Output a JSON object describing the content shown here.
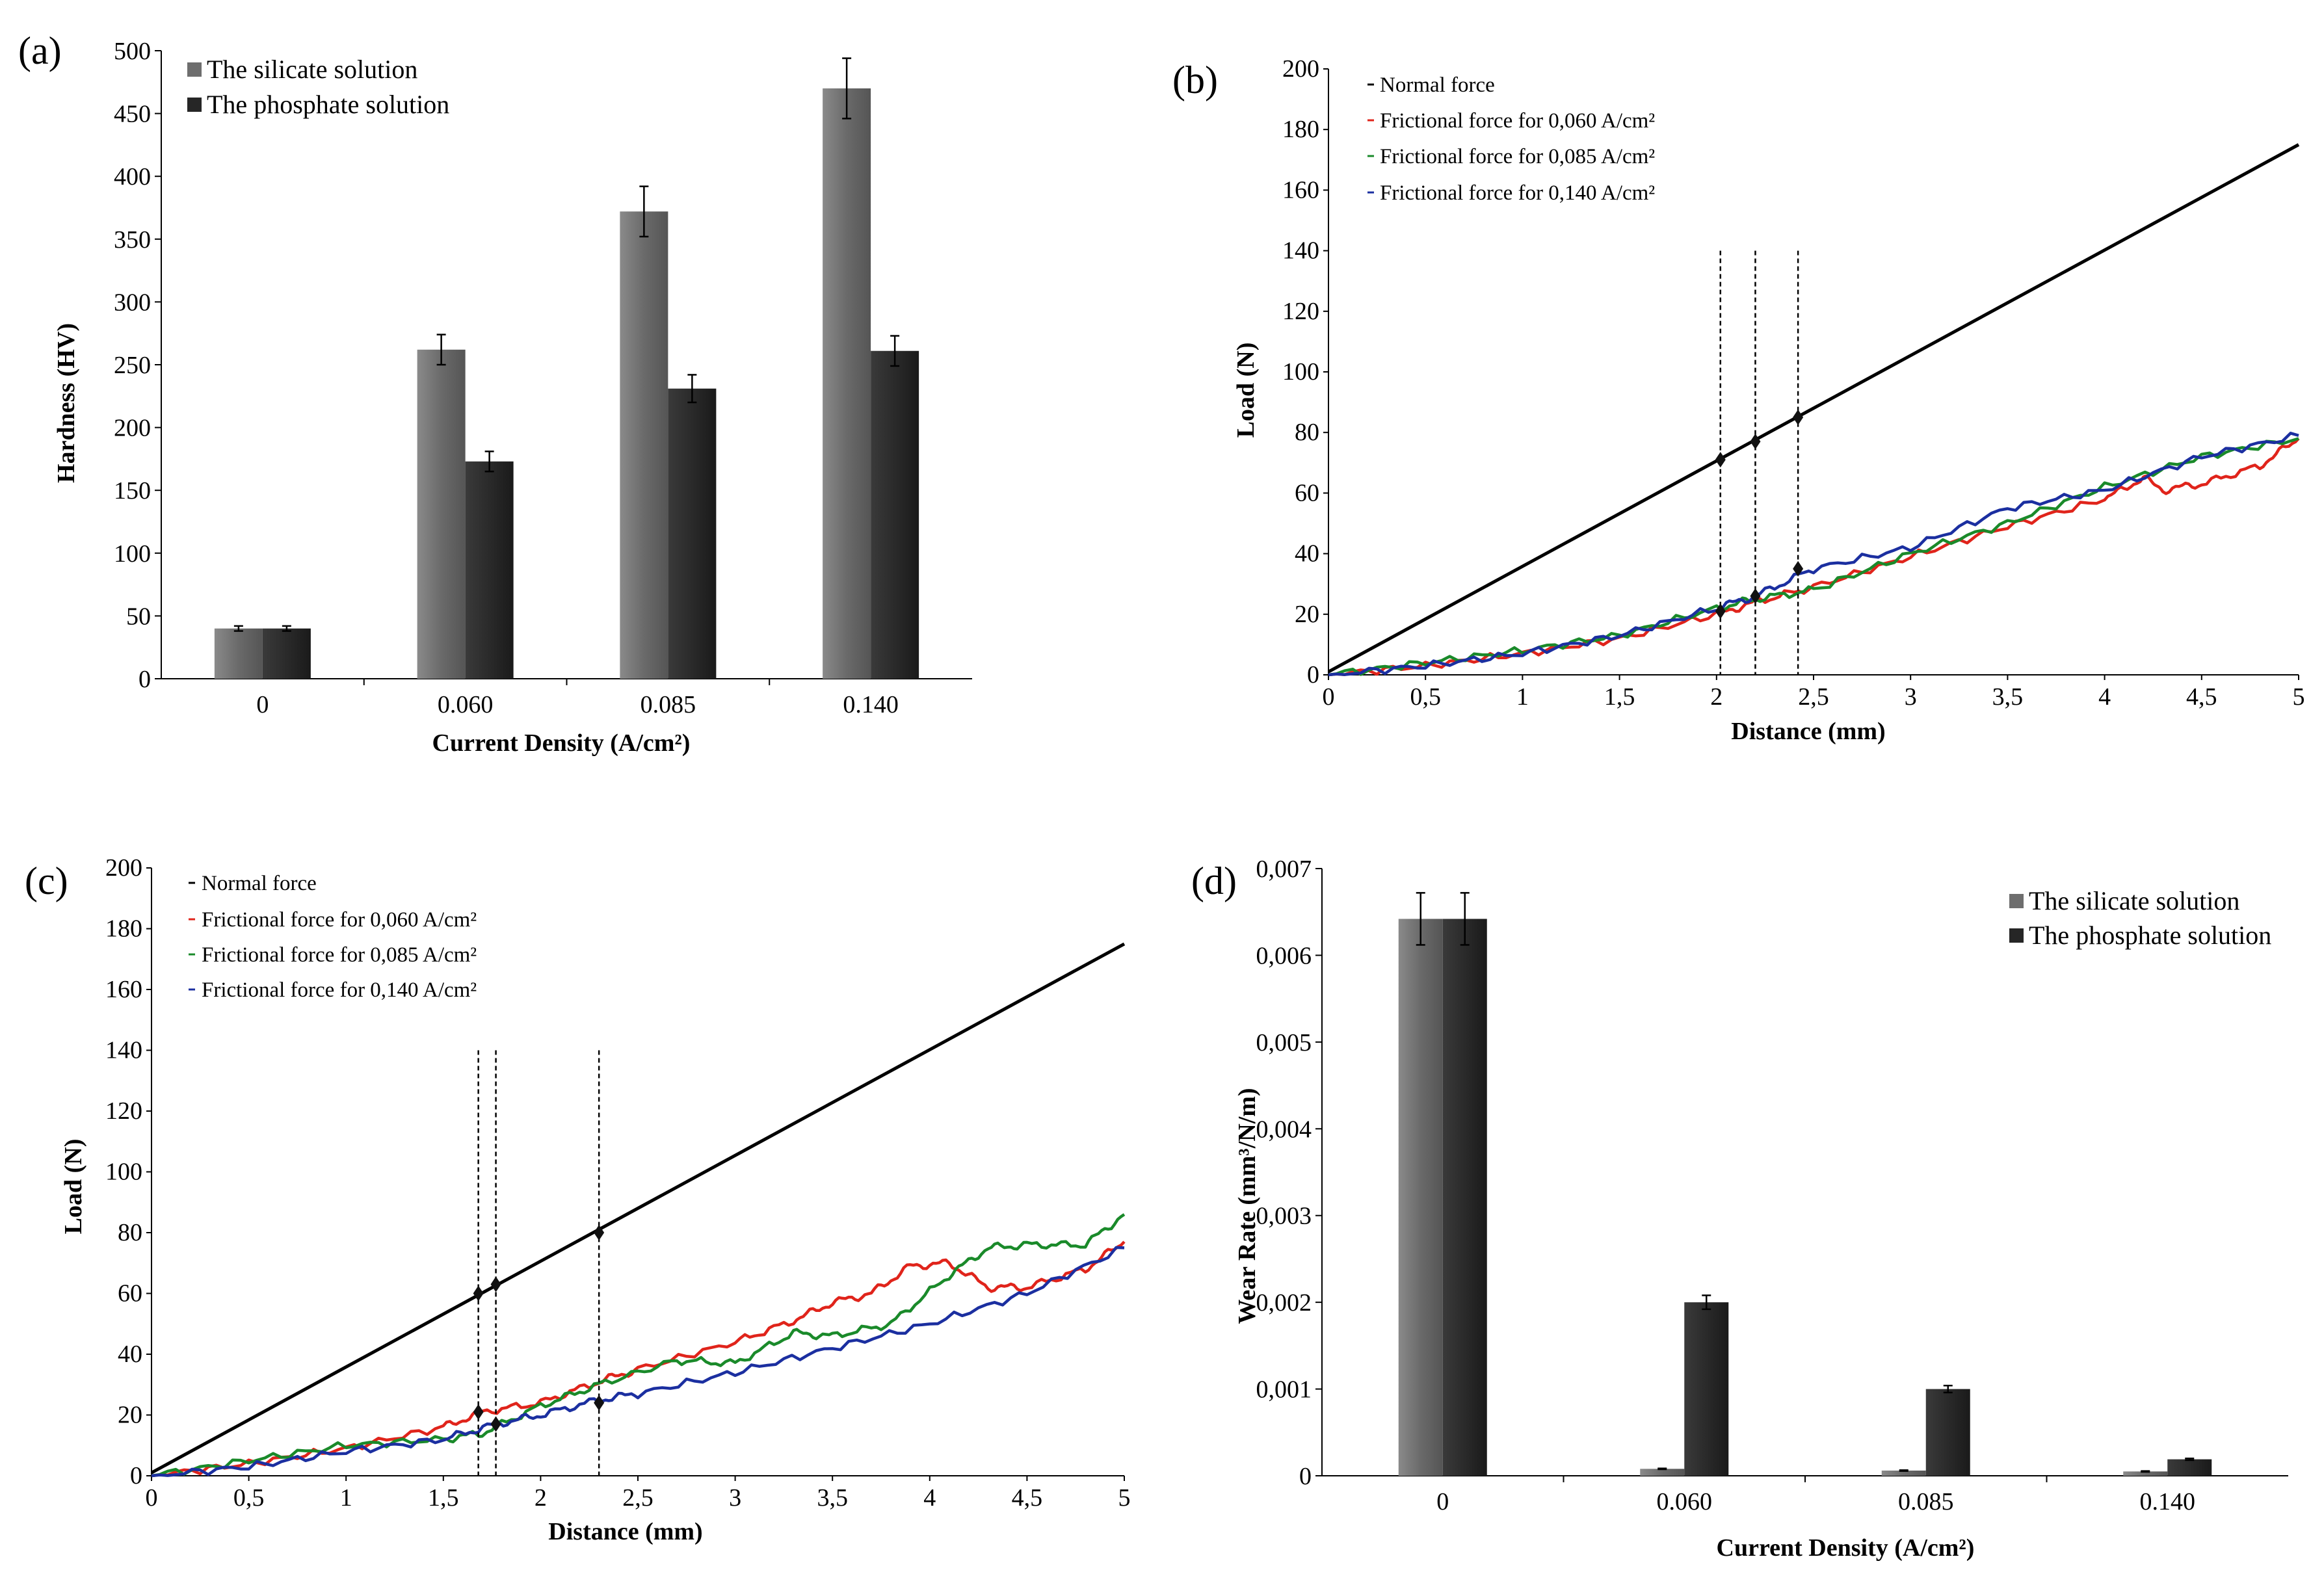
{
  "chart_data": [
    {
      "id": "a",
      "panel_label": "(a)",
      "type": "bar",
      "xlabel": "Current Density (A/cm²)",
      "ylabel": "Hardness (HV)",
      "ylim": [
        0,
        500
      ],
      "yticks": [
        0,
        50,
        100,
        150,
        200,
        250,
        300,
        350,
        400,
        450,
        500
      ],
      "categories": [
        "0",
        "0.060",
        "0.085",
        "0.140"
      ],
      "series": [
        {
          "name": "The silicate solution",
          "color": "#6e6e6e",
          "values": [
            40,
            262,
            372,
            470
          ],
          "errors": [
            2,
            12,
            20,
            24
          ]
        },
        {
          "name": "The phosphate solution",
          "color": "#262626",
          "values": [
            40,
            173,
            231,
            261
          ],
          "errors": [
            2,
            8,
            11,
            12
          ]
        }
      ]
    },
    {
      "id": "b",
      "panel_label": "(b)",
      "type": "line",
      "xlabel": "Distance (mm)",
      "ylabel": "Load (N)",
      "xlim": [
        0,
        5
      ],
      "ylim": [
        0,
        200
      ],
      "xticks": [
        "0",
        "0,5",
        "1",
        "1,5",
        "2",
        "2,5",
        "3",
        "3,5",
        "4",
        "4,5",
        "5"
      ],
      "yticks": [
        0,
        20,
        40,
        60,
        80,
        100,
        120,
        140,
        160,
        180,
        200
      ],
      "legend": [
        "Normal force",
        "Frictional force for 0,060 A/cm²",
        "Frictional force for 0,085 A/cm²",
        "Frictional force for 0,140 A/cm²"
      ],
      "series": [
        {
          "name": "Normal force",
          "color": "#000000",
          "x": [
            0,
            5
          ],
          "y": [
            1,
            175
          ]
        },
        {
          "name": "Frictional force for 0,060 A/cm²",
          "color": "#e0241b",
          "x": [
            0,
            0.5,
            1,
            1.5,
            2,
            2.2,
            2.5,
            3,
            3.5,
            4,
            4.2,
            4.3,
            4.5,
            4.8,
            5
          ],
          "y": [
            0,
            3,
            7,
            12,
            20,
            24,
            29,
            39,
            49,
            58,
            65,
            61,
            63,
            69,
            78
          ]
        },
        {
          "name": "Frictional force for 0,085 A/cm²",
          "color": "#1a8a2a",
          "x": [
            0,
            0.5,
            1,
            1.5,
            2,
            2.2,
            2.5,
            3,
            3.5,
            4,
            4.5,
            5
          ],
          "y": [
            0,
            4,
            8,
            13,
            22,
            25,
            28,
            40,
            50,
            62,
            72,
            78
          ]
        },
        {
          "name": "Frictional force for 0,140 A/cm²",
          "color": "#1b2fa0",
          "x": [
            0,
            0.5,
            1,
            1.5,
            2,
            2.2,
            2.5,
            3,
            3.5,
            4,
            4.5,
            5
          ],
          "y": [
            0,
            3,
            7,
            13,
            22,
            26,
            35,
            42,
            55,
            61,
            72,
            79
          ]
        }
      ],
      "markers": [
        {
          "x": 2.02,
          "normal": 71,
          "friction": 21
        },
        {
          "x": 2.2,
          "normal": 77,
          "friction": 26
        },
        {
          "x": 2.42,
          "normal": 85,
          "friction": 35
        }
      ]
    },
    {
      "id": "c",
      "panel_label": "(c)",
      "type": "line",
      "xlabel": "Distance (mm)",
      "ylabel": "Load (N)",
      "xlim": [
        0,
        5
      ],
      "ylim": [
        0,
        200
      ],
      "xticks": [
        "0",
        "0,5",
        "1",
        "1,5",
        "2",
        "2,5",
        "3",
        "3,5",
        "4",
        "4,5",
        "5"
      ],
      "yticks": [
        0,
        20,
        40,
        60,
        80,
        100,
        120,
        140,
        160,
        180,
        200
      ],
      "legend": [
        "Normal force",
        "Frictional force for 0,060 A/cm²",
        "Frictional force for 0,085 A/cm²",
        "Frictional force for 0,140 A/cm²"
      ],
      "series": [
        {
          "name": "Normal force",
          "color": "#000000",
          "x": [
            0,
            5
          ],
          "y": [
            1,
            175
          ]
        },
        {
          "name": "Frictional force for 0,060 A/cm²",
          "color": "#e0241b",
          "x": [
            0,
            0.5,
            1,
            1.5,
            1.7,
            2,
            2.3,
            2.5,
            3,
            3.3,
            3.5,
            3.7,
            3.9,
            4.1,
            4.3,
            4.5,
            4.8,
            5
          ],
          "y": [
            0,
            4,
            9,
            16,
            21,
            24,
            31,
            35,
            44,
            51,
            57,
            60,
            69,
            70,
            62,
            62,
            68,
            77
          ]
        },
        {
          "name": "Frictional force for 0,085 A/cm²",
          "color": "#1a8a2a",
          "x": [
            0,
            0.5,
            1,
            1.5,
            1.7,
            2,
            2.3,
            2.7,
            3,
            3.3,
            3.5,
            3.8,
            4.1,
            4.3,
            4.5,
            4.8,
            5
          ],
          "y": [
            0,
            5,
            10,
            12,
            14,
            23,
            30,
            38,
            37,
            47,
            46,
            50,
            66,
            75,
            76,
            76,
            86
          ]
        },
        {
          "name": "Frictional force for 0,140 A/cm²",
          "color": "#1b2fa0",
          "x": [
            0,
            0.5,
            1,
            1.5,
            1.77,
            2,
            2.3,
            2.5,
            3,
            3.5,
            4,
            4.5,
            5
          ],
          "y": [
            0,
            3,
            8,
            12,
            17,
            20,
            25,
            27,
            34,
            42,
            50,
            60,
            75
          ]
        }
      ],
      "markers": [
        {
          "x": 1.68,
          "normal": 60,
          "friction": 21
        },
        {
          "x": 1.77,
          "normal": 63,
          "friction": 17
        },
        {
          "x": 2.3,
          "normal": 80,
          "friction": 24
        }
      ]
    },
    {
      "id": "d",
      "panel_label": "(d)",
      "type": "bar",
      "xlabel": "Current Density (A/cm²)",
      "ylabel": "Wear Rate (mm³/N/m)",
      "ylim": [
        0,
        0.007
      ],
      "yticks": [
        "0",
        "0,001",
        "0,002",
        "0,003",
        "0,004",
        "0,005",
        "0,006",
        "0,007"
      ],
      "categories": [
        "0",
        "0.060",
        "0.085",
        "0.140"
      ],
      "series": [
        {
          "name": "The silicate solution",
          "color": "#6e6e6e",
          "values": [
            0.00642,
            8e-05,
            6e-05,
            5e-05
          ],
          "errors": [
            0.0003,
            5e-06,
            5e-06,
            5e-06
          ]
        },
        {
          "name": "The phosphate solution",
          "color": "#262626",
          "values": [
            0.00642,
            0.002,
            0.001,
            0.00019
          ],
          "errors": [
            0.0003,
            8e-05,
            4e-05,
            1e-05
          ]
        }
      ]
    }
  ]
}
